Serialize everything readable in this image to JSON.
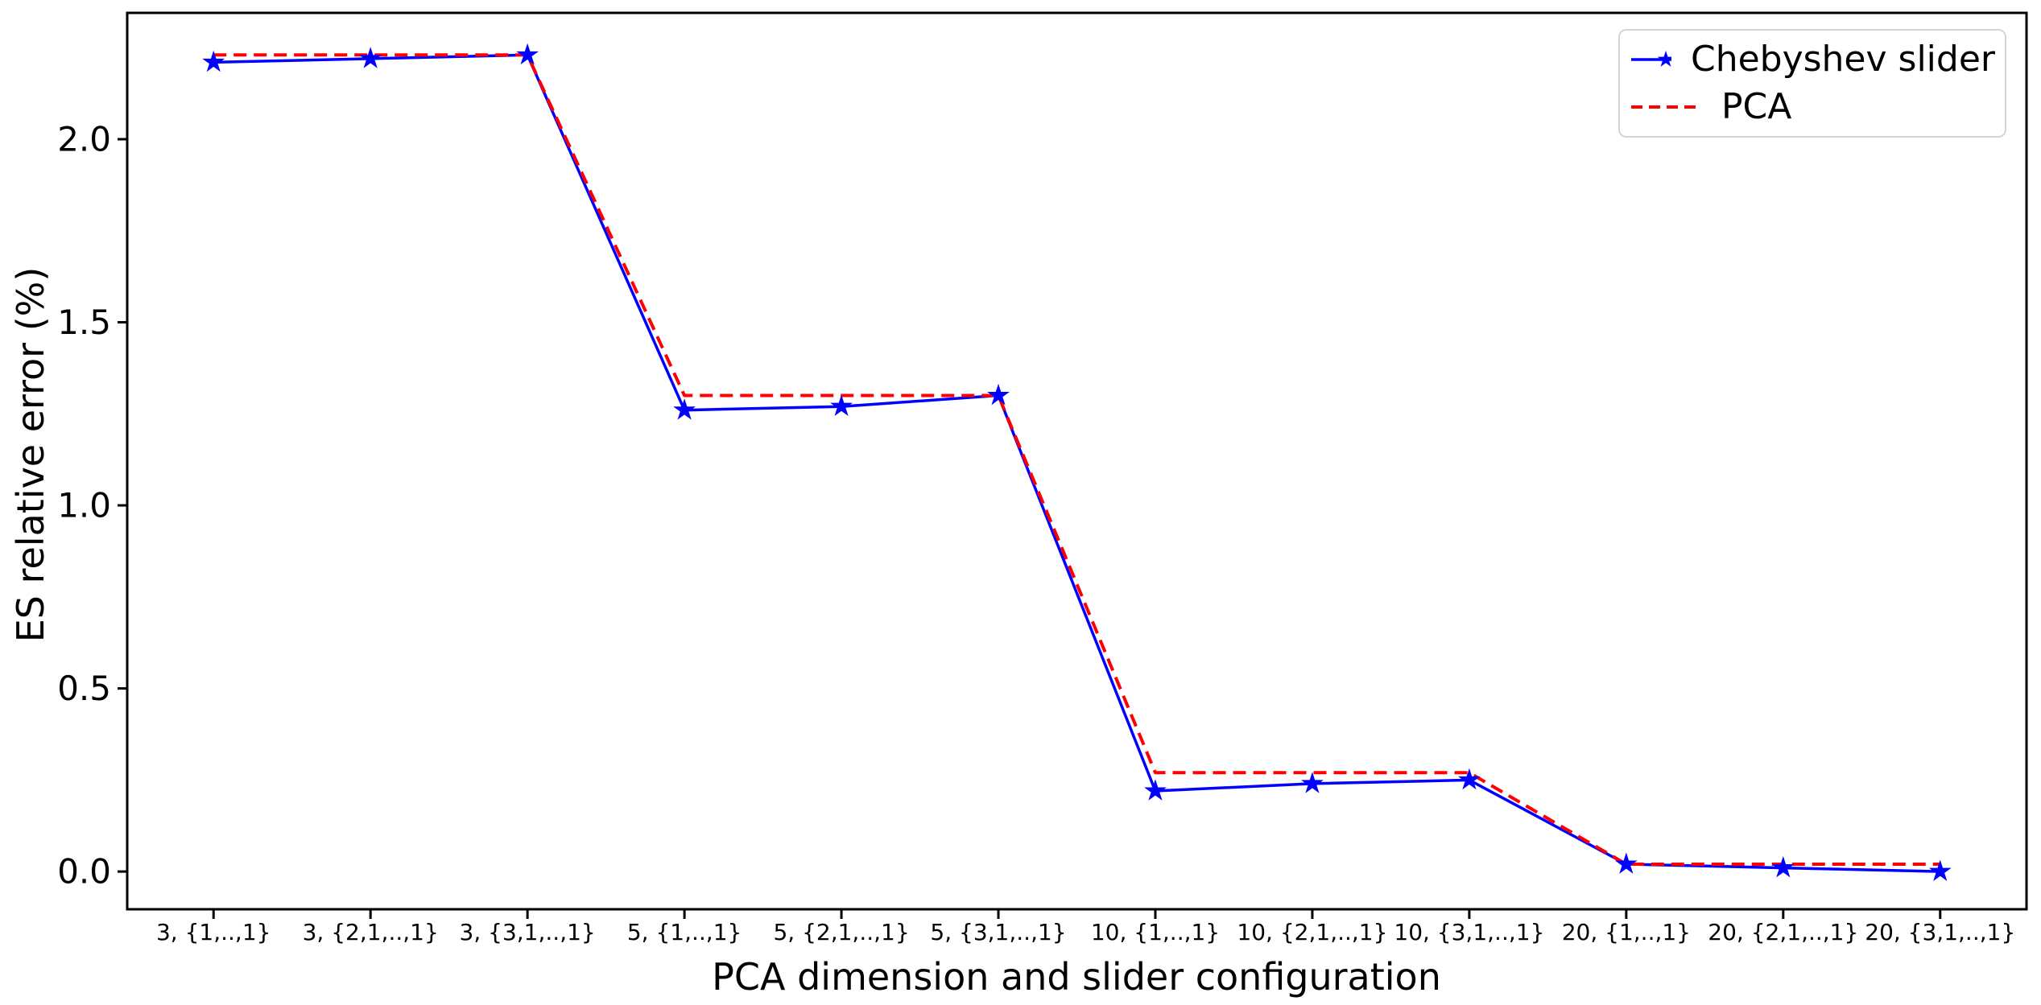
{
  "chart_data": {
    "type": "line",
    "title": "",
    "xlabel": "PCA dimension and slider configuration",
    "ylabel": "ES relative error (%)",
    "categories": [
      "3, {1,..,1}",
      "3, {2,1,..,1}",
      "3, {3,1,..,1}",
      "5, {1,..,1}",
      "5, {2,1,..,1}",
      "5, {3,1,..,1}",
      "10, {1,..,1}",
      "10, {2,1,..,1}",
      "10, {3,1,..,1}",
      "20, {1,..,1}",
      "20, {2,1,..,1}",
      "20, {3,1,..,1}"
    ],
    "series": [
      {
        "name": "Chebyshev slider",
        "color": "#0000ff",
        "line_style": "solid",
        "marker": "star",
        "values": [
          2.21,
          2.22,
          2.23,
          1.26,
          1.27,
          1.3,
          0.22,
          0.24,
          0.25,
          0.02,
          0.01,
          0.0
        ]
      },
      {
        "name": "PCA",
        "color": "#ff0000",
        "line_style": "dashed",
        "marker": "none",
        "values": [
          2.23,
          2.23,
          2.23,
          1.3,
          1.3,
          1.3,
          0.27,
          0.27,
          0.27,
          0.02,
          0.02,
          0.02
        ]
      }
    ],
    "yticks": [
      0.0,
      0.5,
      1.0,
      1.5,
      2.0
    ],
    "ytick_labels": [
      "0.0",
      "0.5",
      "1.0",
      "1.5",
      "2.0"
    ],
    "ylim": [
      -0.103,
      2.345
    ],
    "grid": false,
    "legend_position": "upper right",
    "axis_color": "#000000",
    "background_color": "#ffffff"
  }
}
